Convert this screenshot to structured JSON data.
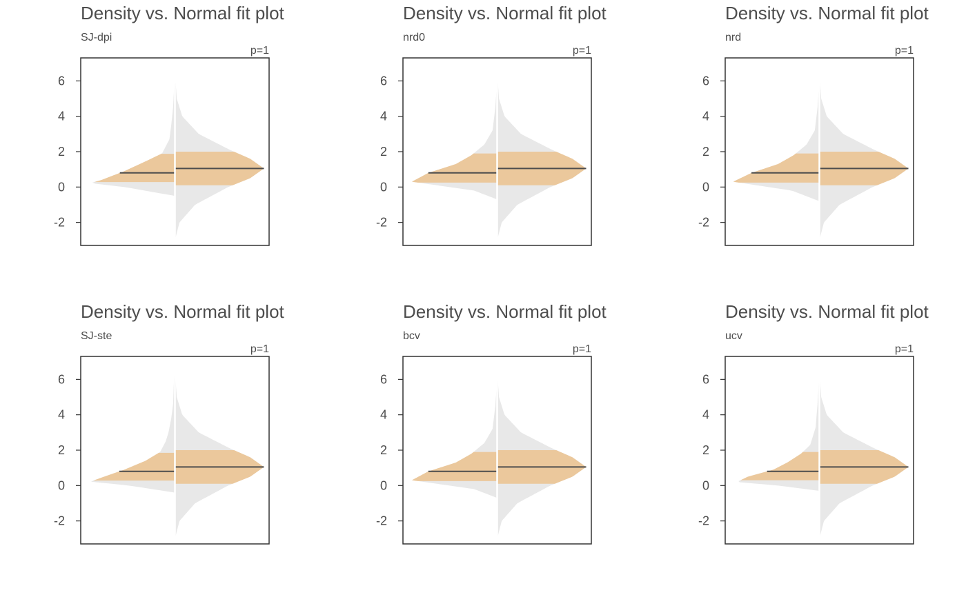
{
  "colors": {
    "density_fill": "#e8e8e8",
    "iqr_fill": "#ebc89c",
    "median_line": "#4d4d4d",
    "divider": "#ffffff",
    "text": "#4d4d4d",
    "axis": "#333333"
  },
  "chart_data": [
    {
      "type": "area",
      "title": "Density vs. Normal fit plot",
      "subtitle": "SJ-dpi",
      "annotation": "p=1",
      "ylim": [
        -3.3,
        7.3
      ],
      "yticks": [
        -2,
        0,
        2,
        4,
        6
      ],
      "grid": false,
      "series": [
        {
          "side": "left",
          "profile": [
            [
              -0.5,
              0.0
            ],
            [
              0.0,
              0.55
            ],
            [
              0.22,
              0.92
            ],
            [
              0.4,
              0.8
            ],
            [
              0.9,
              0.55
            ],
            [
              1.5,
              0.3
            ],
            [
              1.9,
              0.14
            ],
            [
              2.3,
              0.1
            ],
            [
              2.7,
              0.06
            ],
            [
              3.5,
              0.04
            ],
            [
              4.5,
              0.02
            ],
            [
              5.5,
              0.01
            ],
            [
              7.0,
              0.0
            ]
          ],
          "median": 0.8,
          "q1": 0.28,
          "q3": 1.88
        },
        {
          "side": "right",
          "profile": [
            [
              -3.0,
              0.0
            ],
            [
              -2.0,
              0.05
            ],
            [
              -1.0,
              0.22
            ],
            [
              0.0,
              0.58
            ],
            [
              0.5,
              0.82
            ],
            [
              1.05,
              0.97
            ],
            [
              1.6,
              0.82
            ],
            [
              2.1,
              0.6
            ],
            [
              3.0,
              0.26
            ],
            [
              4.0,
              0.08
            ],
            [
              5.0,
              0.02
            ],
            [
              6.5,
              0.0
            ]
          ],
          "median": 1.05,
          "q1": 0.1,
          "q3": 2.0
        }
      ]
    },
    {
      "type": "area",
      "title": "Density vs. Normal fit plot",
      "subtitle": "nrd0",
      "annotation": "p=1",
      "ylim": [
        -3.3,
        7.3
      ],
      "yticks": [
        -2,
        0,
        2,
        4,
        6
      ],
      "grid": false,
      "series": [
        {
          "side": "left",
          "profile": [
            [
              -0.7,
              0.0
            ],
            [
              -0.2,
              0.25
            ],
            [
              0.3,
              0.93
            ],
            [
              0.8,
              0.75
            ],
            [
              1.3,
              0.45
            ],
            [
              1.8,
              0.28
            ],
            [
              2.4,
              0.14
            ],
            [
              3.2,
              0.05
            ],
            [
              4.5,
              0.02
            ],
            [
              6.0,
              0.0
            ]
          ],
          "median": 0.8,
          "q1": 0.25,
          "q3": 1.9
        },
        {
          "side": "right",
          "profile": [
            [
              -3.0,
              0.0
            ],
            [
              -2.0,
              0.05
            ],
            [
              -1.0,
              0.22
            ],
            [
              0.0,
              0.58
            ],
            [
              0.5,
              0.82
            ],
            [
              1.05,
              0.97
            ],
            [
              1.6,
              0.82
            ],
            [
              2.1,
              0.6
            ],
            [
              3.0,
              0.26
            ],
            [
              4.0,
              0.08
            ],
            [
              5.0,
              0.02
            ],
            [
              6.5,
              0.0
            ]
          ],
          "median": 1.05,
          "q1": 0.1,
          "q3": 2.0
        }
      ]
    },
    {
      "type": "area",
      "title": "Density vs. Normal fit plot",
      "subtitle": "nrd",
      "annotation": "p=1",
      "ylim": [
        -3.3,
        7.3
      ],
      "yticks": [
        -2,
        0,
        2,
        4,
        6
      ],
      "grid": false,
      "series": [
        {
          "side": "left",
          "profile": [
            [
              -0.8,
              0.0
            ],
            [
              -0.2,
              0.3
            ],
            [
              0.3,
              0.94
            ],
            [
              0.8,
              0.74
            ],
            [
              1.3,
              0.45
            ],
            [
              1.8,
              0.28
            ],
            [
              2.4,
              0.14
            ],
            [
              3.2,
              0.05
            ],
            [
              4.5,
              0.02
            ],
            [
              6.0,
              0.0
            ]
          ],
          "median": 0.8,
          "q1": 0.25,
          "q3": 1.9
        },
        {
          "side": "right",
          "profile": [
            [
              -3.0,
              0.0
            ],
            [
              -2.0,
              0.05
            ],
            [
              -1.0,
              0.22
            ],
            [
              0.0,
              0.58
            ],
            [
              0.5,
              0.82
            ],
            [
              1.05,
              0.97
            ],
            [
              1.6,
              0.82
            ],
            [
              2.1,
              0.6
            ],
            [
              3.0,
              0.26
            ],
            [
              4.0,
              0.08
            ],
            [
              5.0,
              0.02
            ],
            [
              6.5,
              0.0
            ]
          ],
          "median": 1.05,
          "q1": 0.1,
          "q3": 2.0
        }
      ]
    },
    {
      "type": "area",
      "title": "Density vs. Normal fit plot",
      "subtitle": "SJ-ste",
      "annotation": "p=1",
      "ylim": [
        -3.3,
        7.3
      ],
      "yticks": [
        -2,
        0,
        2,
        4,
        6
      ],
      "grid": false,
      "series": [
        {
          "side": "left",
          "profile": [
            [
              -0.4,
              0.0
            ],
            [
              0.0,
              0.5
            ],
            [
              0.22,
              0.92
            ],
            [
              0.45,
              0.8
            ],
            [
              0.9,
              0.55
            ],
            [
              1.4,
              0.32
            ],
            [
              1.9,
              0.16
            ],
            [
              2.5,
              0.1
            ],
            [
              3.0,
              0.07
            ],
            [
              3.8,
              0.04
            ],
            [
              4.6,
              0.02
            ],
            [
              6.0,
              0.01
            ],
            [
              7.0,
              0.0
            ]
          ],
          "median": 0.8,
          "q1": 0.28,
          "q3": 1.85
        },
        {
          "side": "right",
          "profile": [
            [
              -3.0,
              0.0
            ],
            [
              -2.0,
              0.05
            ],
            [
              -1.0,
              0.22
            ],
            [
              0.0,
              0.58
            ],
            [
              0.5,
              0.82
            ],
            [
              1.05,
              0.97
            ],
            [
              1.6,
              0.82
            ],
            [
              2.1,
              0.6
            ],
            [
              3.0,
              0.26
            ],
            [
              4.0,
              0.08
            ],
            [
              5.0,
              0.02
            ],
            [
              6.5,
              0.0
            ]
          ],
          "median": 1.05,
          "q1": 0.1,
          "q3": 2.0
        }
      ]
    },
    {
      "type": "area",
      "title": "Density vs. Normal fit plot",
      "subtitle": "bcv",
      "annotation": "p=1",
      "ylim": [
        -3.3,
        7.3
      ],
      "yticks": [
        -2,
        0,
        2,
        4,
        6
      ],
      "grid": false,
      "series": [
        {
          "side": "left",
          "profile": [
            [
              -0.7,
              0.0
            ],
            [
              -0.2,
              0.25
            ],
            [
              0.3,
              0.93
            ],
            [
              0.8,
              0.75
            ],
            [
              1.3,
              0.45
            ],
            [
              1.8,
              0.28
            ],
            [
              2.4,
              0.14
            ],
            [
              3.2,
              0.05
            ],
            [
              4.5,
              0.02
            ],
            [
              6.0,
              0.0
            ]
          ],
          "median": 0.8,
          "q1": 0.25,
          "q3": 1.9
        },
        {
          "side": "right",
          "profile": [
            [
              -3.0,
              0.0
            ],
            [
              -2.0,
              0.05
            ],
            [
              -1.0,
              0.22
            ],
            [
              0.0,
              0.58
            ],
            [
              0.5,
              0.82
            ],
            [
              1.05,
              0.97
            ],
            [
              1.6,
              0.82
            ],
            [
              2.1,
              0.6
            ],
            [
              3.0,
              0.26
            ],
            [
              4.0,
              0.08
            ],
            [
              5.0,
              0.02
            ],
            [
              6.5,
              0.0
            ]
          ],
          "median": 1.05,
          "q1": 0.1,
          "q3": 2.0
        }
      ]
    },
    {
      "type": "area",
      "title": "Density vs. Normal fit plot",
      "subtitle": "ucv",
      "annotation": "p=1",
      "ylim": [
        -3.3,
        7.3
      ],
      "yticks": [
        -2,
        0,
        2,
        4,
        6
      ],
      "grid": false,
      "series": [
        {
          "side": "left",
          "profile": [
            [
              -0.3,
              0.0
            ],
            [
              0.0,
              0.45
            ],
            [
              0.2,
              0.9
            ],
            [
              0.5,
              0.78
            ],
            [
              0.9,
              0.5
            ],
            [
              1.3,
              0.35
            ],
            [
              1.8,
              0.2
            ],
            [
              2.3,
              0.1
            ],
            [
              2.8,
              0.07
            ],
            [
              3.3,
              0.04
            ],
            [
              4.0,
              0.03
            ],
            [
              4.6,
              0.02
            ],
            [
              5.5,
              0.01
            ],
            [
              7.0,
              0.0
            ]
          ],
          "median": 0.8,
          "q1": 0.3,
          "q3": 1.9
        },
        {
          "side": "right",
          "profile": [
            [
              -3.0,
              0.0
            ],
            [
              -2.0,
              0.05
            ],
            [
              -1.0,
              0.22
            ],
            [
              0.0,
              0.58
            ],
            [
              0.5,
              0.82
            ],
            [
              1.05,
              0.97
            ],
            [
              1.6,
              0.82
            ],
            [
              2.1,
              0.6
            ],
            [
              3.0,
              0.26
            ],
            [
              4.0,
              0.08
            ],
            [
              5.0,
              0.02
            ],
            [
              6.5,
              0.0
            ]
          ],
          "median": 1.05,
          "q1": 0.1,
          "q3": 2.0
        }
      ]
    }
  ]
}
